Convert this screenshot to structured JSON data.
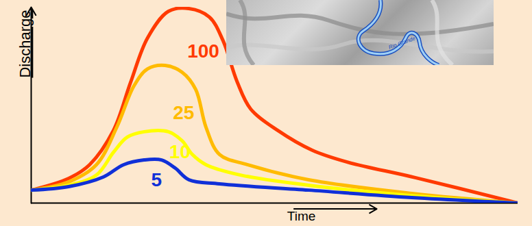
{
  "chart_data": {
    "type": "line",
    "x_label": "Time",
    "y_label": "Discharge",
    "annotations": [
      "Rio Grande"
    ],
    "xlim": [
      0,
      100
    ],
    "ylim": [
      0,
      100
    ],
    "xticks": [],
    "yticks": [],
    "tick_labels": false,
    "series": [
      {
        "name": "100",
        "color": "#ff3a00",
        "x": [
          0,
          7.7,
          12.0,
          16.9,
          20.4,
          23.9,
          28.2,
          32.4,
          36.6,
          39.4,
          42.3,
          45.1,
          50.7,
          57.7,
          64.8,
          78.9,
          100
        ],
        "values": [
          6.6,
          12.6,
          19.6,
          37.1,
          61.5,
          84.3,
          97.9,
          99.3,
          95,
          83,
          62,
          48,
          37,
          27,
          21,
          13,
          0
        ]
      },
      {
        "name": "25",
        "color": "#ffbb00",
        "x": [
          0,
          7.7,
          13.4,
          17.6,
          21.1,
          23.9,
          27.5,
          31.0,
          33.8,
          35.9,
          38.7,
          44.4,
          57.0,
          78.2,
          100
        ],
        "values": [
          6.6,
          10.8,
          19.6,
          38.8,
          59.8,
          68.5,
          70.3,
          66.8,
          58,
          38.8,
          24.8,
          19.6,
          11.9,
          4.9,
          0
        ]
      },
      {
        "name": "10",
        "color": "#ffff00",
        "x": [
          0,
          7.7,
          13.4,
          16.9,
          19.7,
          23.2,
          28.2,
          31.0,
          33.1,
          35.9,
          43.0,
          57.0,
          78.2,
          100
        ],
        "values": [
          6.6,
          9.1,
          14.3,
          25.9,
          33.6,
          36.4,
          36.4,
          31.8,
          24.8,
          19.6,
          14.3,
          9.1,
          3.8,
          0
        ]
      },
      {
        "name": "5",
        "color": "#1030d8",
        "x": [
          0,
          7.7,
          14.8,
          19.0,
          23.2,
          26.8,
          29.6,
          32.4,
          38.7,
          57.0,
          78.2,
          100
        ],
        "values": [
          6.6,
          8.4,
          13.3,
          19.6,
          22,
          22,
          17.8,
          11.9,
          9.8,
          6.6,
          2.8,
          0
        ]
      }
    ]
  }
}
